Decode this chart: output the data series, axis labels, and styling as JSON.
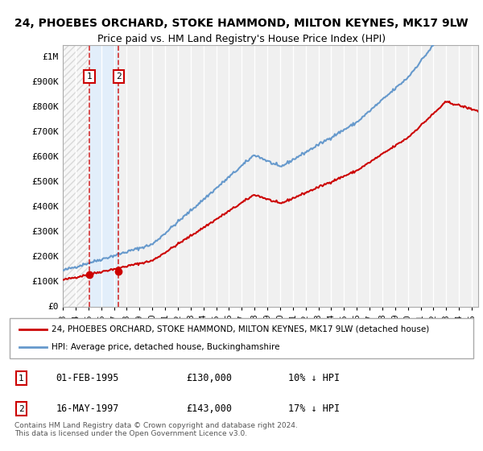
{
  "title": "24, PHOEBES ORCHARD, STOKE HAMMOND, MILTON KEYNES, MK17 9LW",
  "subtitle": "Price paid vs. HM Land Registry's House Price Index (HPI)",
  "ylabel": "",
  "background_color": "#ffffff",
  "plot_bg_color": "#f0f0f0",
  "hatch_color": "#cccccc",
  "grid_color": "#ffffff",
  "purchases": [
    {
      "date": 1995.08,
      "price": 130000,
      "label": "1"
    },
    {
      "date": 1997.37,
      "price": 143000,
      "label": "2"
    }
  ],
  "purchase_color": "#cc0000",
  "hpi_color": "#6699cc",
  "legend_entries": [
    "24, PHOEBES ORCHARD, STOKE HAMMOND, MILTON KEYNES, MK17 9LW (detached house)",
    "HPI: Average price, detached house, Buckinghamshire"
  ],
  "table_rows": [
    {
      "label": "1",
      "date": "01-FEB-1995",
      "price": "£130,000",
      "hpi": "10% ↓ HPI"
    },
    {
      "label": "2",
      "date": "16-MAY-1997",
      "price": "£143,000",
      "hpi": "17% ↓ HPI"
    }
  ],
  "footer": "Contains HM Land Registry data © Crown copyright and database right 2024.\nThis data is licensed under the Open Government Licence v3.0.",
  "xmin": 1993.0,
  "xmax": 2025.5,
  "ymin": 0,
  "ymax": 1050000,
  "yticks": [
    0,
    100000,
    200000,
    300000,
    400000,
    500000,
    600000,
    700000,
    800000,
    900000,
    1000000
  ],
  "ytick_labels": [
    "£0",
    "£100K",
    "£200K",
    "£300K",
    "£400K",
    "£500K",
    "£600K",
    "£700K",
    "£800K",
    "£900K",
    "£1M"
  ]
}
